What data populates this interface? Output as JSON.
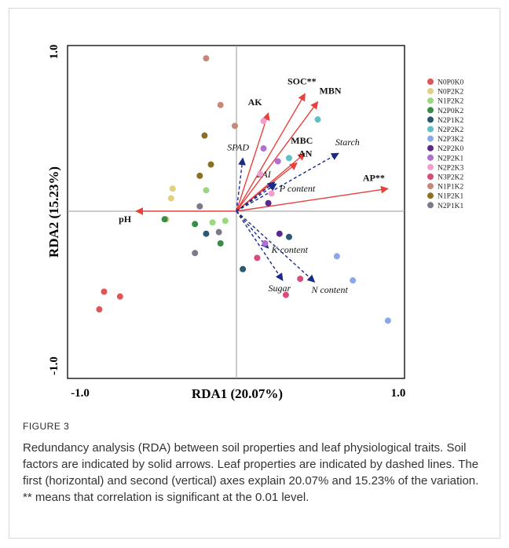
{
  "figure": {
    "label": "FIGURE 3",
    "caption": "Redundancy analysis (RDA) between soil properties and leaf physiological traits. Soil factors are indicated by solid arrows. Leaf properties are indicated by dashed lines. The first (horizontal) and second (vertical) axes explain 20.07% and 15.23% of the variation. ** means that correlation is significant at the 0.01 level."
  },
  "chart_data": {
    "type": "scatter",
    "title": "",
    "xlabel": "RDA1 (20.07%)",
    "ylabel": "RDA2 (15.23%)",
    "xlim": [
      -1.0,
      1.0
    ],
    "ylim": [
      -1.0,
      1.0
    ],
    "xticks": [
      {
        "value": -1.0,
        "label": "-1.0"
      },
      {
        "value": 1.0,
        "label": "1.0"
      }
    ],
    "yticks": [
      {
        "value": -1.0,
        "label": "-1.0"
      },
      {
        "value": 1.0,
        "label": "1.0"
      }
    ],
    "grid": false,
    "legend_position": "right",
    "colors": {
      "soil_arrow": "#e8413c",
      "leaf_arrow": "#1a2a8a"
    },
    "soil_arrows": [
      {
        "label": "SOC**",
        "x": 0.43,
        "y": 0.73
      },
      {
        "label": "MBN",
        "x": 0.51,
        "y": 0.68
      },
      {
        "label": "AK",
        "x": 0.2,
        "y": 0.61
      },
      {
        "label": "MBC",
        "x": 0.43,
        "y": 0.36
      },
      {
        "label": "AN",
        "x": 0.38,
        "y": 0.3
      },
      {
        "label": "AP**",
        "x": 0.95,
        "y": 0.14
      },
      {
        "label": "pH",
        "x": -0.63,
        "y": 0.0
      }
    ],
    "leaf_arrows": [
      {
        "label": "SPAD",
        "x": 0.04,
        "y": 0.33
      },
      {
        "label": "Starch",
        "x": 0.64,
        "y": 0.36
      },
      {
        "label": "LAI",
        "x": 0.24,
        "y": 0.18
      },
      {
        "label": "P content",
        "x": 0.25,
        "y": 0.17
      },
      {
        "label": "K content",
        "x": 0.2,
        "y": -0.23
      },
      {
        "label": "Sugar",
        "x": 0.29,
        "y": -0.43
      },
      {
        "label": "N content",
        "x": 0.49,
        "y": -0.44
      }
    ],
    "series": [
      {
        "name": "N0P0K0",
        "color": "#e05555",
        "points": [
          [
            -0.83,
            -0.5
          ],
          [
            -0.73,
            -0.53
          ],
          [
            -0.86,
            -0.61
          ]
        ]
      },
      {
        "name": "N0P2K2",
        "color": "#e0d080",
        "points": [
          [
            -0.4,
            0.14
          ],
          [
            -0.41,
            0.08
          ],
          [
            -0.44,
            -0.05
          ]
        ]
      },
      {
        "name": "N1P2K2",
        "color": "#9ad880",
        "points": [
          [
            -0.19,
            0.13
          ],
          [
            -0.15,
            -0.07
          ],
          [
            -0.07,
            -0.06
          ]
        ]
      },
      {
        "name": "N2P0K2",
        "color": "#3a8a4a",
        "points": [
          [
            -0.45,
            -0.05
          ],
          [
            -0.26,
            -0.08
          ],
          [
            -0.1,
            -0.2
          ]
        ]
      },
      {
        "name": "N2P1K2",
        "color": "#2a5a70",
        "points": [
          [
            -0.19,
            -0.14
          ],
          [
            0.33,
            -0.16
          ],
          [
            0.04,
            -0.36
          ]
        ]
      },
      {
        "name": "N2P2K2",
        "color": "#60c0c8",
        "points": [
          [
            0.51,
            0.57
          ],
          [
            0.33,
            0.33
          ]
        ]
      },
      {
        "name": "N2P3K2",
        "color": "#8aa8e8",
        "points": [
          [
            0.63,
            -0.28
          ],
          [
            0.73,
            -0.43
          ],
          [
            0.95,
            -0.68
          ]
        ]
      },
      {
        "name": "N2P2K0",
        "color": "#5a2a8a",
        "points": [
          [
            0.27,
            -0.14
          ],
          [
            0.2,
            0.05
          ]
        ]
      },
      {
        "name": "N2P2K1",
        "color": "#b070d0",
        "points": [
          [
            0.17,
            0.39
          ],
          [
            0.26,
            0.31
          ],
          [
            0.18,
            -0.2
          ]
        ]
      },
      {
        "name": "N2P2K3",
        "color": "#f0a0d0",
        "points": [
          [
            0.17,
            0.56
          ],
          [
            0.15,
            0.23
          ],
          [
            0.22,
            0.11
          ]
        ]
      },
      {
        "name": "N3P2K2",
        "color": "#d84c7c",
        "points": [
          [
            0.13,
            -0.29
          ],
          [
            0.4,
            -0.42
          ],
          [
            0.31,
            -0.52
          ]
        ]
      },
      {
        "name": "N1P1K2",
        "color": "#c88878",
        "points": [
          [
            -0.19,
            0.95
          ],
          [
            -0.1,
            0.66
          ],
          [
            -0.01,
            0.53
          ]
        ]
      },
      {
        "name": "N1P2K1",
        "color": "#8a7020",
        "points": [
          [
            -0.2,
            0.47
          ],
          [
            -0.16,
            0.29
          ],
          [
            -0.23,
            0.22
          ]
        ]
      },
      {
        "name": "N2P1K1",
        "color": "#7a7a8a",
        "points": [
          [
            -0.23,
            0.03
          ],
          [
            -0.11,
            -0.13
          ],
          [
            -0.26,
            -0.26
          ]
        ]
      }
    ]
  }
}
